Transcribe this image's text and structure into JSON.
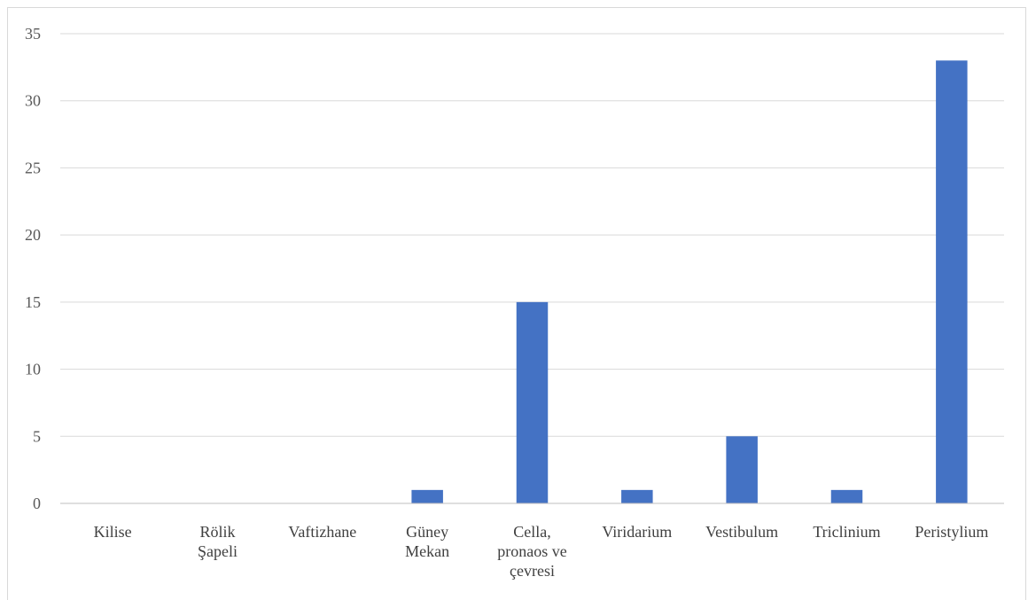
{
  "chart_data": {
    "type": "bar",
    "categories": [
      [
        "Kilise"
      ],
      [
        "Rölik",
        "Şapeli"
      ],
      [
        "Vaftizhane"
      ],
      [
        "Güney",
        "Mekan"
      ],
      [
        "Cella,",
        "pronaos ve",
        "çevresi"
      ],
      [
        "Viridarium"
      ],
      [
        "Vestibulum"
      ],
      [
        "Triclinium"
      ],
      [
        "Peristylium"
      ]
    ],
    "values": [
      0,
      0,
      0,
      1,
      15,
      1,
      5,
      1,
      33
    ],
    "ylim": [
      0,
      35
    ],
    "yticks": [
      0,
      5,
      10,
      15,
      20,
      25,
      30,
      35
    ],
    "grid": true,
    "legend": "none",
    "bar_color": "#4472c4"
  }
}
